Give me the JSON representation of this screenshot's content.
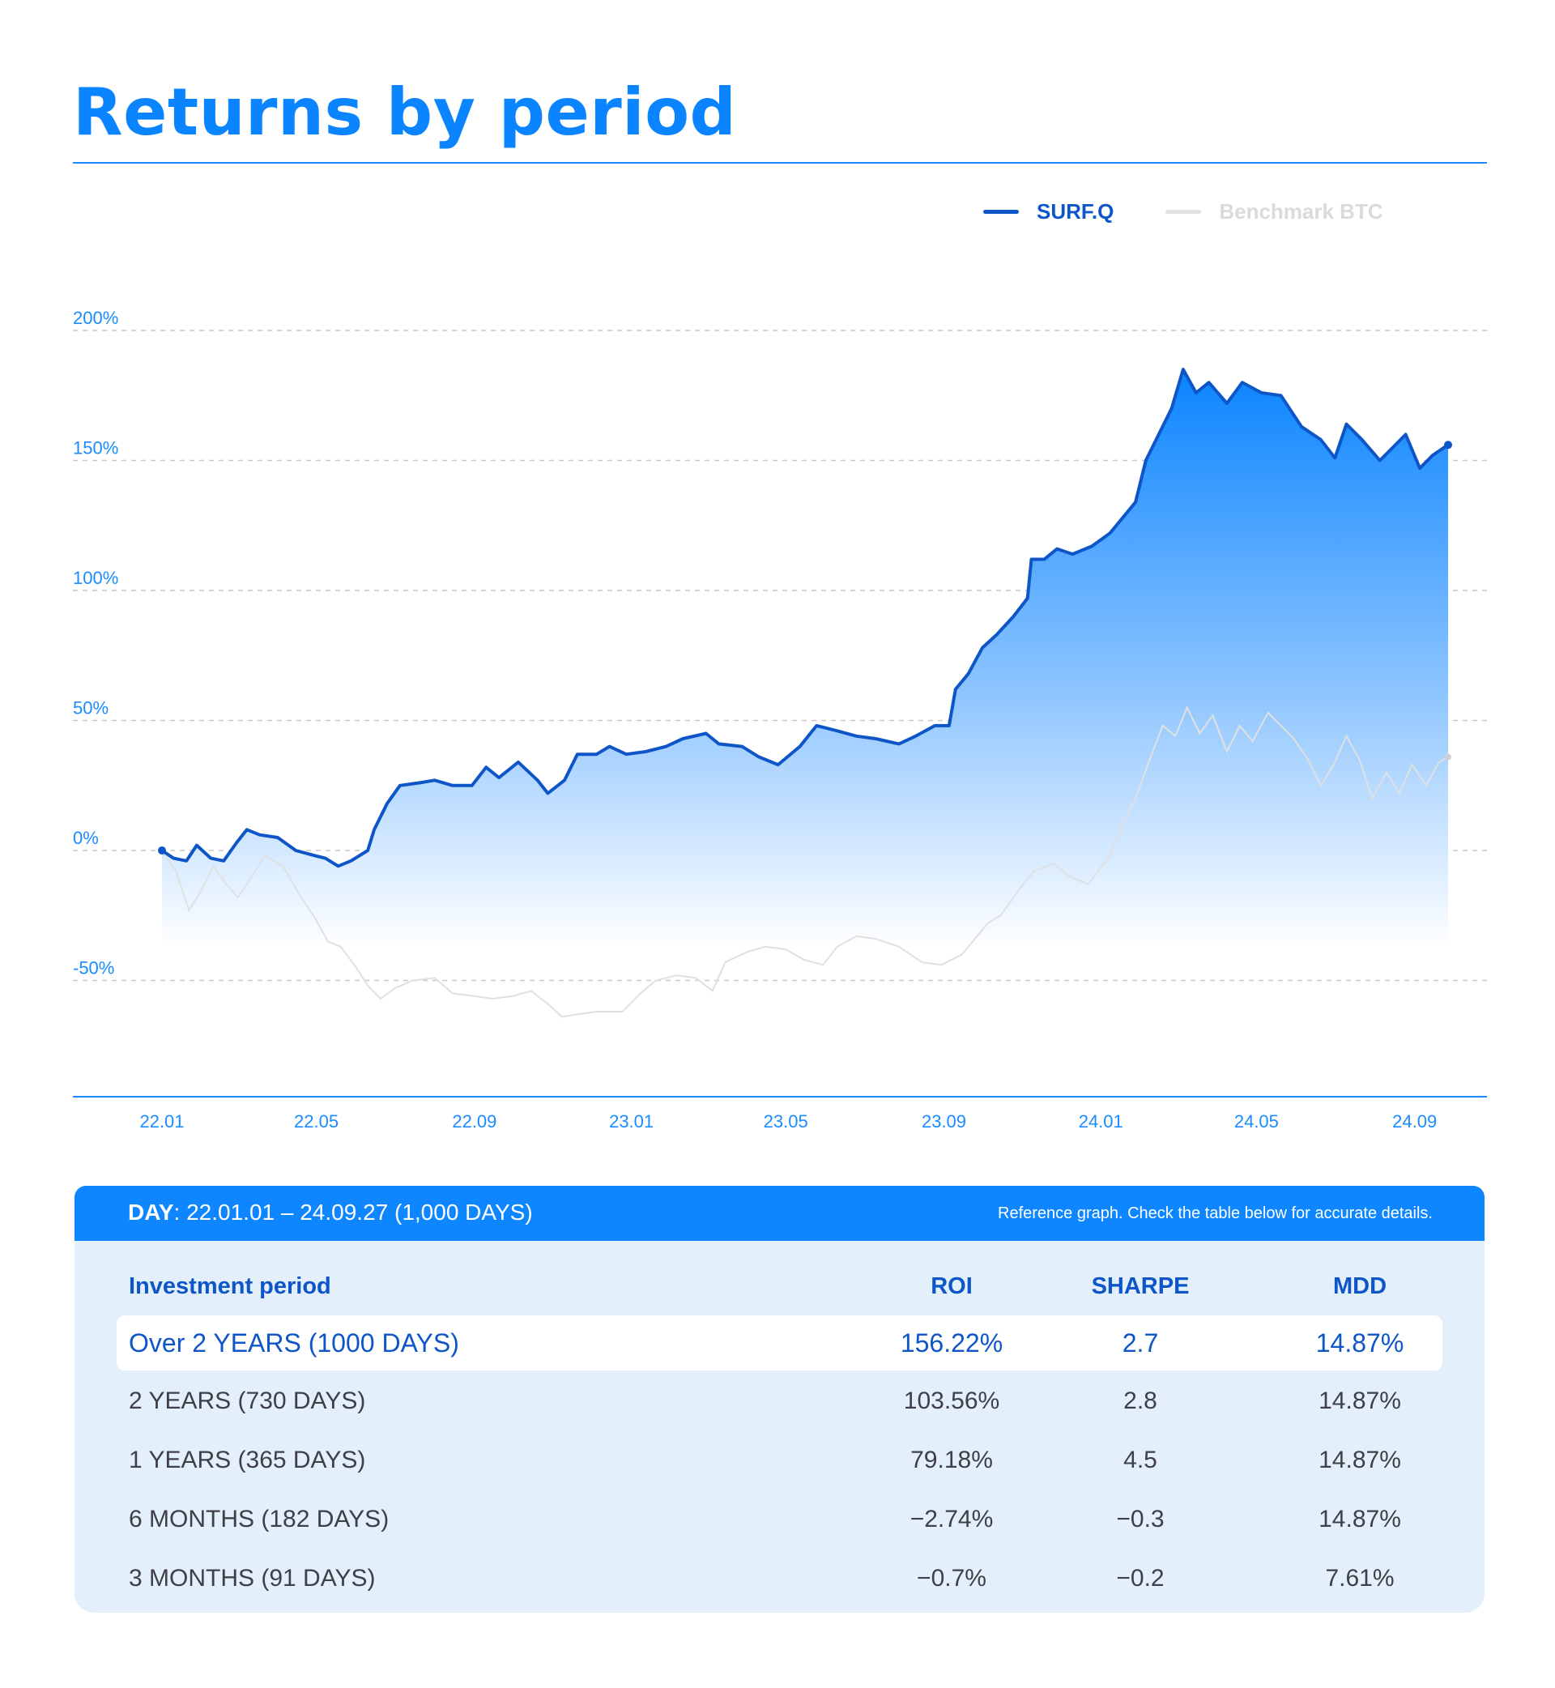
{
  "page": {
    "title": "Returns by period"
  },
  "legend": [
    {
      "label": "SURF.Q",
      "color": "#0e56c8"
    },
    {
      "label": "Benchmark BTC",
      "color": "#e2e2e2"
    }
  ],
  "chart_data": {
    "type": "area",
    "x_tick_labels": [
      "22.01",
      "22.05",
      "22.09",
      "23.01",
      "23.05",
      "23.09",
      "24.01",
      "24.05",
      "24.09"
    ],
    "y_tick_labels": [
      "200%",
      "150%",
      "100%",
      "50%",
      "0%",
      "-50%"
    ],
    "ylim": [
      -95,
      215
    ],
    "grid": "dashed horizontal lines",
    "series": [
      {
        "name": "SURF.Q",
        "color": "#0e56c8",
        "fill": "gradient #0a84ff to white",
        "points": [
          [
            "22.01.01",
            0
          ],
          [
            "22.01.10",
            -3
          ],
          [
            "22.01.20",
            -4
          ],
          [
            "22.01.28",
            2
          ],
          [
            "22.02.08",
            -3
          ],
          [
            "22.02.18",
            -4
          ],
          [
            "22.02.28",
            3
          ],
          [
            "22.03.08",
            8
          ],
          [
            "22.03.18",
            6
          ],
          [
            "22.04.01",
            5
          ],
          [
            "22.04.15",
            0
          ],
          [
            "22.04.30",
            -2
          ],
          [
            "22.05.08",
            -3
          ],
          [
            "22.05.18",
            -6
          ],
          [
            "22.05.28",
            -4
          ],
          [
            "22.06.10",
            0
          ],
          [
            "22.06.15",
            8
          ],
          [
            "22.06.25",
            18
          ],
          [
            "22.07.05",
            25
          ],
          [
            "22.07.20",
            26
          ],
          [
            "22.08.01",
            27
          ],
          [
            "22.08.15",
            25
          ],
          [
            "22.08.30",
            25
          ],
          [
            "22.09.10",
            32
          ],
          [
            "22.09.20",
            28
          ],
          [
            "22.10.05",
            34
          ],
          [
            "22.10.20",
            27
          ],
          [
            "22.10.28",
            22
          ],
          [
            "22.11.10",
            27
          ],
          [
            "22.11.20",
            37
          ],
          [
            "22.12.05",
            37
          ],
          [
            "22.12.15",
            40
          ],
          [
            "22.12.28",
            37
          ],
          [
            "23.01.12",
            38
          ],
          [
            "23.01.28",
            40
          ],
          [
            "23.02.10",
            43
          ],
          [
            "23.02.28",
            45
          ],
          [
            "23.03.10",
            41
          ],
          [
            "23.03.28",
            40
          ],
          [
            "23.04.10",
            36
          ],
          [
            "23.04.25",
            33
          ],
          [
            "23.05.12",
            40
          ],
          [
            "23.05.25",
            48
          ],
          [
            "23.06.10",
            46
          ],
          [
            "23.06.25",
            44
          ],
          [
            "23.07.10",
            43
          ],
          [
            "23.07.28",
            41
          ],
          [
            "23.08.10",
            44
          ],
          [
            "23.08.25",
            48
          ],
          [
            "23.09.05",
            48
          ],
          [
            "23.09.10",
            62
          ],
          [
            "23.09.20",
            68
          ],
          [
            "23.10.01",
            78
          ],
          [
            "23.10.12",
            83
          ],
          [
            "23.10.25",
            90
          ],
          [
            "23.11.05",
            97
          ],
          [
            "23.11.08",
            112
          ],
          [
            "23.11.18",
            112
          ],
          [
            "23.11.28",
            116
          ],
          [
            "23.12.10",
            114
          ],
          [
            "23.12.25",
            117
          ],
          [
            "24.01.08",
            122
          ],
          [
            "24.01.28",
            134
          ],
          [
            "24.02.05",
            150
          ],
          [
            "24.02.15",
            160
          ],
          [
            "24.02.25",
            170
          ],
          [
            "24.03.05",
            185
          ],
          [
            "24.03.15",
            176
          ],
          [
            "24.03.25",
            180
          ],
          [
            "24.04.08",
            172
          ],
          [
            "24.04.20",
            180
          ],
          [
            "24.05.05",
            176
          ],
          [
            "24.05.20",
            175
          ],
          [
            "24.06.05",
            163
          ],
          [
            "24.06.20",
            158
          ],
          [
            "24.07.01",
            151
          ],
          [
            "24.07.10",
            164
          ],
          [
            "24.07.22",
            158
          ],
          [
            "24.08.05",
            150
          ],
          [
            "24.08.15",
            155
          ],
          [
            "24.08.25",
            160
          ],
          [
            "24.09.05",
            147
          ],
          [
            "24.09.15",
            152
          ],
          [
            "24.09.27",
            156
          ]
        ]
      },
      {
        "name": "Benchmark BTC",
        "color": "#e2e2e2",
        "points": [
          [
            "22.01.01",
            0
          ],
          [
            "22.01.12",
            -8
          ],
          [
            "22.01.22",
            -23
          ],
          [
            "22.02.01",
            -15
          ],
          [
            "22.02.10",
            -6
          ],
          [
            "22.02.20",
            -13
          ],
          [
            "22.03.01",
            -18
          ],
          [
            "22.03.12",
            -10
          ],
          [
            "22.03.22",
            -2
          ],
          [
            "22.04.05",
            -6
          ],
          [
            "22.04.18",
            -17
          ],
          [
            "22.04.30",
            -26
          ],
          [
            "22.05.10",
            -35
          ],
          [
            "22.05.20",
            -37
          ],
          [
            "22.06.01",
            -45
          ],
          [
            "22.06.10",
            -52
          ],
          [
            "22.06.20",
            -57
          ],
          [
            "22.07.01",
            -53
          ],
          [
            "22.07.15",
            -50
          ],
          [
            "22.08.01",
            -49
          ],
          [
            "22.08.15",
            -55
          ],
          [
            "22.09.01",
            -56
          ],
          [
            "22.09.15",
            -57
          ],
          [
            "22.10.01",
            -56
          ],
          [
            "22.10.15",
            -54
          ],
          [
            "22.10.28",
            -59
          ],
          [
            "22.11.08",
            -64
          ],
          [
            "22.11.20",
            -63
          ],
          [
            "22.12.05",
            -62
          ],
          [
            "22.12.25",
            -62
          ],
          [
            "23.01.08",
            -55
          ],
          [
            "23.01.20",
            -50
          ],
          [
            "23.02.05",
            -48
          ],
          [
            "23.02.20",
            -49
          ],
          [
            "23.03.05",
            -54
          ],
          [
            "23.03.15",
            -43
          ],
          [
            "23.04.01",
            -39
          ],
          [
            "23.04.15",
            -37
          ],
          [
            "23.05.01",
            -38
          ],
          [
            "23.05.15",
            -42
          ],
          [
            "23.05.30",
            -44
          ],
          [
            "23.06.10",
            -37
          ],
          [
            "23.06.25",
            -33
          ],
          [
            "23.07.10",
            -34
          ],
          [
            "23.07.28",
            -37
          ],
          [
            "23.08.15",
            -43
          ],
          [
            "23.08.30",
            -44
          ],
          [
            "23.09.15",
            -40
          ],
          [
            "23.09.25",
            -34
          ],
          [
            "23.10.05",
            -28
          ],
          [
            "23.10.15",
            -25
          ],
          [
            "23.10.28",
            -16
          ],
          [
            "23.11.10",
            -8
          ],
          [
            "23.11.25",
            -5
          ],
          [
            "23.12.08",
            -10
          ],
          [
            "23.12.22",
            -13
          ],
          [
            "24.01.08",
            -2
          ],
          [
            "24.01.18",
            10
          ],
          [
            "24.01.28",
            20
          ],
          [
            "24.02.08",
            35
          ],
          [
            "24.02.18",
            48
          ],
          [
            "24.02.28",
            44
          ],
          [
            "24.03.08",
            55
          ],
          [
            "24.03.18",
            45
          ],
          [
            "24.03.28",
            52
          ],
          [
            "24.04.08",
            38
          ],
          [
            "24.04.18",
            48
          ],
          [
            "24.04.28",
            42
          ],
          [
            "24.05.10",
            53
          ],
          [
            "24.05.20",
            48
          ],
          [
            "24.05.30",
            43
          ],
          [
            "24.06.10",
            35
          ],
          [
            "24.06.20",
            25
          ],
          [
            "24.06.30",
            33
          ],
          [
            "24.07.10",
            44
          ],
          [
            "24.07.20",
            35
          ],
          [
            "24.07.30",
            20
          ],
          [
            "24.08.10",
            30
          ],
          [
            "24.08.20",
            22
          ],
          [
            "24.08.30",
            33
          ],
          [
            "24.09.10",
            25
          ],
          [
            "24.09.20",
            34
          ],
          [
            "24.09.27",
            36
          ]
        ]
      }
    ]
  },
  "period": {
    "label": "DAY",
    "value": ": 22.01.01 – 24.09.27 (1,000 DAYS)",
    "note": "Reference graph. Check the table below for accurate details."
  },
  "table": {
    "headers": {
      "period": "Investment period",
      "roi": "ROI",
      "sharpe": "SHARPE",
      "mdd": "MDD"
    },
    "rows": [
      {
        "period": "Over 2 YEARS (1000 DAYS)",
        "roi": "156.22%",
        "sharpe": "2.7",
        "mdd": "14.87%"
      },
      {
        "period": "2 YEARS (730 DAYS)",
        "roi": "103.56%",
        "sharpe": "2.8",
        "mdd": "14.87%"
      },
      {
        "period": "1 YEARS (365 DAYS)",
        "roi": "79.18%",
        "sharpe": "4.5",
        "mdd": "14.87%"
      },
      {
        "period": "6 MONTHS (182 DAYS)",
        "roi": "−2.74%",
        "sharpe": "−0.3",
        "mdd": "14.87%"
      },
      {
        "period": "3 MONTHS (91 DAYS)",
        "roi": "−0.7%",
        "sharpe": "−0.2",
        "mdd": "7.61%"
      }
    ]
  }
}
